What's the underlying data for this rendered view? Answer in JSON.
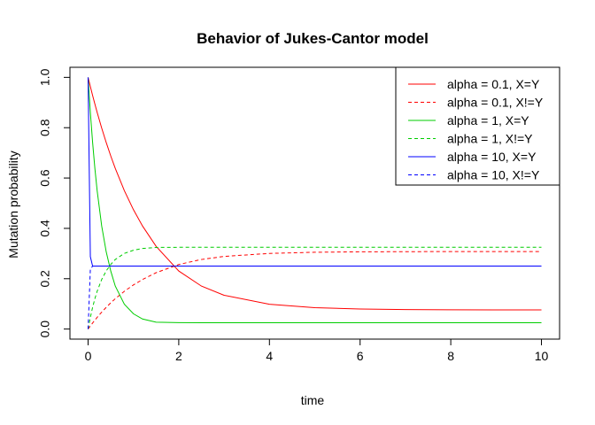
{
  "chart_data": {
    "type": "line",
    "title": "Behavior of Jukes-Cantor model",
    "xlabel": "time",
    "ylabel": "Mutation probability",
    "xlim": [
      -0.4,
      10.4
    ],
    "ylim": [
      -0.04,
      1.04
    ],
    "x_ticks": [
      0,
      2,
      4,
      6,
      8,
      10
    ],
    "x_tick_labels": [
      "0",
      "2",
      "4",
      "6",
      "8",
      "10"
    ],
    "y_ticks": [
      0.0,
      0.2,
      0.4,
      0.6,
      0.8,
      1.0
    ],
    "y_tick_labels": [
      "0.0",
      "0.2",
      "0.4",
      "0.6",
      "0.8",
      "1.0"
    ],
    "grid": false,
    "legend_position": "top-right",
    "x": [
      0,
      0.05,
      0.1,
      0.15,
      0.2,
      0.3,
      0.4,
      0.5,
      0.6,
      0.8,
      1.0,
      1.2,
      1.5,
      2.0,
      2.5,
      3.0,
      4.0,
      5.0,
      6.0,
      7.0,
      8.0,
      9.0,
      10.0
    ],
    "series": [
      {
        "name": "alpha = 0.1, X=Y",
        "color": "#ff0000",
        "dash": "solid",
        "values": [
          1.0,
          0.9634,
          0.928,
          0.8939,
          0.8609,
          0.7987,
          0.7411,
          0.6877,
          0.6383,
          0.55,
          0.4744,
          0.4096,
          0.3287,
          0.2306,
          0.1707,
          0.1342,
          0.0985,
          0.0848,
          0.0795,
          0.0774,
          0.0766,
          0.0763,
          0.0762
        ]
      },
      {
        "name": "alpha = 0.1, X!=Y",
        "color": "#ff0000",
        "dash": "dashed",
        "values": [
          0.0,
          0.0122,
          0.024,
          0.0354,
          0.0464,
          0.0671,
          0.0863,
          0.1041,
          0.1206,
          0.15,
          0.1752,
          0.1968,
          0.2238,
          0.2565,
          0.2764,
          0.2886,
          0.3005,
          0.3051,
          0.3068,
          0.3075,
          0.3078,
          0.3079,
          0.3079
        ]
      },
      {
        "name": "alpha = 1, X=Y",
        "color": "#00cd00",
        "dash": "solid",
        "values": [
          1.0,
          0.8609,
          0.7411,
          0.6383,
          0.55,
          0.4096,
          0.3068,
          0.2306,
          0.1707,
          0.0985,
          0.0607,
          0.0399,
          0.0274,
          0.0256,
          0.025,
          0.025,
          0.025,
          0.025,
          0.025,
          0.025,
          0.025,
          0.025,
          0.025
        ]
      },
      {
        "name": "alpha = 1, X!=Y",
        "color": "#00cd00",
        "dash": "dashed",
        "values": [
          0.0,
          0.0464,
          0.0863,
          0.1206,
          0.15,
          0.1968,
          0.2311,
          0.2565,
          0.2764,
          0.3005,
          0.3131,
          0.32,
          0.3242,
          0.3248,
          0.325,
          0.325,
          0.325,
          0.325,
          0.325,
          0.325,
          0.325,
          0.325,
          0.325
        ]
      },
      {
        "name": "alpha = 10, X=Y",
        "color": "#0000ff",
        "dash": "solid",
        "values": [
          1.0,
          0.2875,
          0.25,
          0.25,
          0.25,
          0.25,
          0.25,
          0.25,
          0.25,
          0.25,
          0.25,
          0.25,
          0.25,
          0.25,
          0.25,
          0.25,
          0.25,
          0.25,
          0.25,
          0.25,
          0.25,
          0.25,
          0.25
        ]
      },
      {
        "name": "alpha = 10, X!=Y",
        "color": "#0000ff",
        "dash": "dashed",
        "values": [
          0.0,
          0.2375,
          0.25,
          0.25,
          0.25,
          0.25,
          0.25,
          0.25,
          0.25,
          0.25,
          0.25,
          0.25,
          0.25,
          0.25,
          0.25,
          0.25,
          0.25,
          0.25,
          0.25,
          0.25,
          0.25,
          0.25,
          0.25
        ]
      }
    ]
  }
}
